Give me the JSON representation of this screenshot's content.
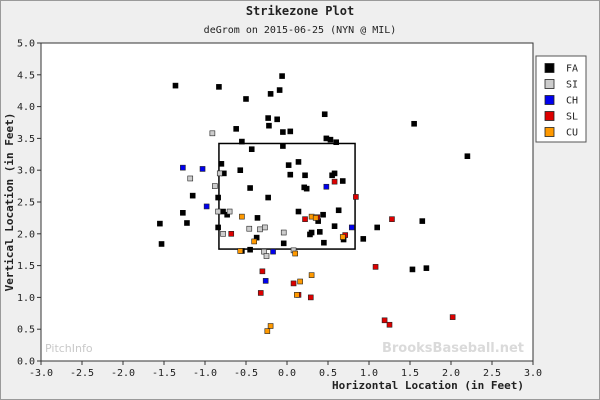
{
  "chart_data": {
    "type": "scatter",
    "title": "Strikezone Plot",
    "subtitle": "deGrom on 2015-06-25 (NYN @ MIL)",
    "xlabel": "Horizontal Location (in Feet)",
    "ylabel": "Vertical Location (in Feet)",
    "xlim": [
      -3.0,
      3.0
    ],
    "ylim": [
      0.0,
      5.0
    ],
    "x_ticks": [
      "-3.0",
      "-2.5",
      "-2.0",
      "-1.5",
      "-1.0",
      "-0.5",
      "0.0",
      "0.5",
      "1.0",
      "1.5",
      "2.0",
      "2.5",
      "3.0"
    ],
    "y_ticks": [
      "0.0",
      "0.5",
      "1.0",
      "1.5",
      "2.0",
      "2.5",
      "3.0",
      "3.5",
      "4.0",
      "4.5",
      "5.0"
    ],
    "legend_position": "right",
    "strike_zone": {
      "x": [
        -0.83,
        0.83
      ],
      "y": [
        1.76,
        3.42
      ]
    },
    "watermark_left": "PitchInfo",
    "watermark_right": "BrooksBaseball.net",
    "series": [
      {
        "name": "FA",
        "color": "#000000",
        "points": [
          [
            -1.36,
            4.33
          ],
          [
            -0.83,
            4.31
          ],
          [
            -0.5,
            4.12
          ],
          [
            -0.2,
            4.2
          ],
          [
            -0.09,
            4.26
          ],
          [
            -0.06,
            4.48
          ],
          [
            -0.23,
            3.82
          ],
          [
            -0.12,
            3.8
          ],
          [
            -0.22,
            3.7
          ],
          [
            -0.05,
            3.6
          ],
          [
            0.04,
            3.61
          ],
          [
            0.46,
            3.88
          ],
          [
            -0.62,
            3.65
          ],
          [
            -0.55,
            3.45
          ],
          [
            -0.43,
            3.33
          ],
          [
            -0.05,
            3.38
          ],
          [
            0.48,
            3.5
          ],
          [
            0.53,
            3.48
          ],
          [
            0.6,
            3.44
          ],
          [
            0.02,
            3.08
          ],
          [
            0.14,
            3.13
          ],
          [
            -0.57,
            3.0
          ],
          [
            -0.77,
            2.95
          ],
          [
            -0.8,
            3.1
          ],
          [
            -0.45,
            2.72
          ],
          [
            0.04,
            2.93
          ],
          [
            0.22,
            2.92
          ],
          [
            0.55,
            2.92
          ],
          [
            0.58,
            2.95
          ],
          [
            0.68,
            2.83
          ],
          [
            0.21,
            2.73
          ],
          [
            0.24,
            2.71
          ],
          [
            -1.15,
            2.6
          ],
          [
            -0.23,
            2.57
          ],
          [
            -0.84,
            2.57
          ],
          [
            -1.27,
            2.33
          ],
          [
            -1.22,
            2.17
          ],
          [
            -0.78,
            2.35
          ],
          [
            -0.73,
            2.3
          ],
          [
            -0.84,
            2.1
          ],
          [
            -0.36,
            2.25
          ],
          [
            -0.37,
            1.94
          ],
          [
            -0.55,
            1.73
          ],
          [
            -0.45,
            1.75
          ],
          [
            0.14,
            2.35
          ],
          [
            0.38,
            2.2
          ],
          [
            0.44,
            2.3
          ],
          [
            0.58,
            2.12
          ],
          [
            0.63,
            2.37
          ],
          [
            0.28,
            1.99
          ],
          [
            0.3,
            2.02
          ],
          [
            0.4,
            2.03
          ],
          [
            0.45,
            1.86
          ],
          [
            -0.04,
            1.85
          ],
          [
            0.69,
            1.91
          ],
          [
            0.93,
            1.92
          ],
          [
            1.1,
            2.1
          ],
          [
            1.55,
            3.73
          ],
          [
            2.2,
            3.22
          ],
          [
            1.65,
            2.2
          ],
          [
            -1.55,
            2.16
          ],
          [
            -1.53,
            1.84
          ],
          [
            1.53,
            1.44
          ],
          [
            1.7,
            1.46
          ]
        ]
      },
      {
        "name": "SI",
        "color": "#cccccc",
        "points": [
          [
            -0.91,
            3.58
          ],
          [
            -1.18,
            2.87
          ],
          [
            -0.88,
            2.75
          ],
          [
            -0.82,
            2.95
          ],
          [
            -0.84,
            2.35
          ],
          [
            -0.78,
            2.0
          ],
          [
            -0.7,
            2.35
          ],
          [
            -0.46,
            2.08
          ],
          [
            -0.33,
            2.07
          ],
          [
            -0.27,
            2.1
          ],
          [
            -0.28,
            1.72
          ],
          [
            -0.25,
            1.65
          ],
          [
            -0.04,
            2.02
          ],
          [
            0.08,
            1.74
          ]
        ]
      },
      {
        "name": "CH",
        "color": "#0000ee",
        "points": [
          [
            -1.27,
            3.04
          ],
          [
            -1.03,
            3.02
          ],
          [
            -0.98,
            2.43
          ],
          [
            -0.17,
            1.72
          ],
          [
            -0.26,
            1.26
          ],
          [
            0.48,
            2.74
          ],
          [
            0.79,
            2.1
          ]
        ]
      },
      {
        "name": "SL",
        "color": "#dd0000",
        "points": [
          [
            -0.68,
            2.0
          ],
          [
            -0.3,
            1.41
          ],
          [
            -0.32,
            1.07
          ],
          [
            0.08,
            1.22
          ],
          [
            0.14,
            1.04
          ],
          [
            0.29,
            1.0
          ],
          [
            0.22,
            2.23
          ],
          [
            0.37,
            2.26
          ],
          [
            0.58,
            2.82
          ],
          [
            0.84,
            2.58
          ],
          [
            1.28,
            2.23
          ],
          [
            0.71,
            1.98
          ],
          [
            1.08,
            1.48
          ],
          [
            1.19,
            0.64
          ],
          [
            1.25,
            0.57
          ],
          [
            2.02,
            0.69
          ]
        ]
      },
      {
        "name": "CU",
        "color": "#ff9900",
        "points": [
          [
            -0.55,
            2.27
          ],
          [
            -0.4,
            1.88
          ],
          [
            -0.57,
            1.73
          ],
          [
            0.16,
            1.25
          ],
          [
            0.1,
            1.69
          ],
          [
            0.3,
            1.35
          ],
          [
            0.3,
            2.27
          ],
          [
            0.35,
            2.25
          ],
          [
            0.68,
            1.95
          ],
          [
            0.12,
            1.04
          ],
          [
            -0.2,
            0.55
          ],
          [
            -0.24,
            0.47
          ]
        ]
      }
    ]
  }
}
